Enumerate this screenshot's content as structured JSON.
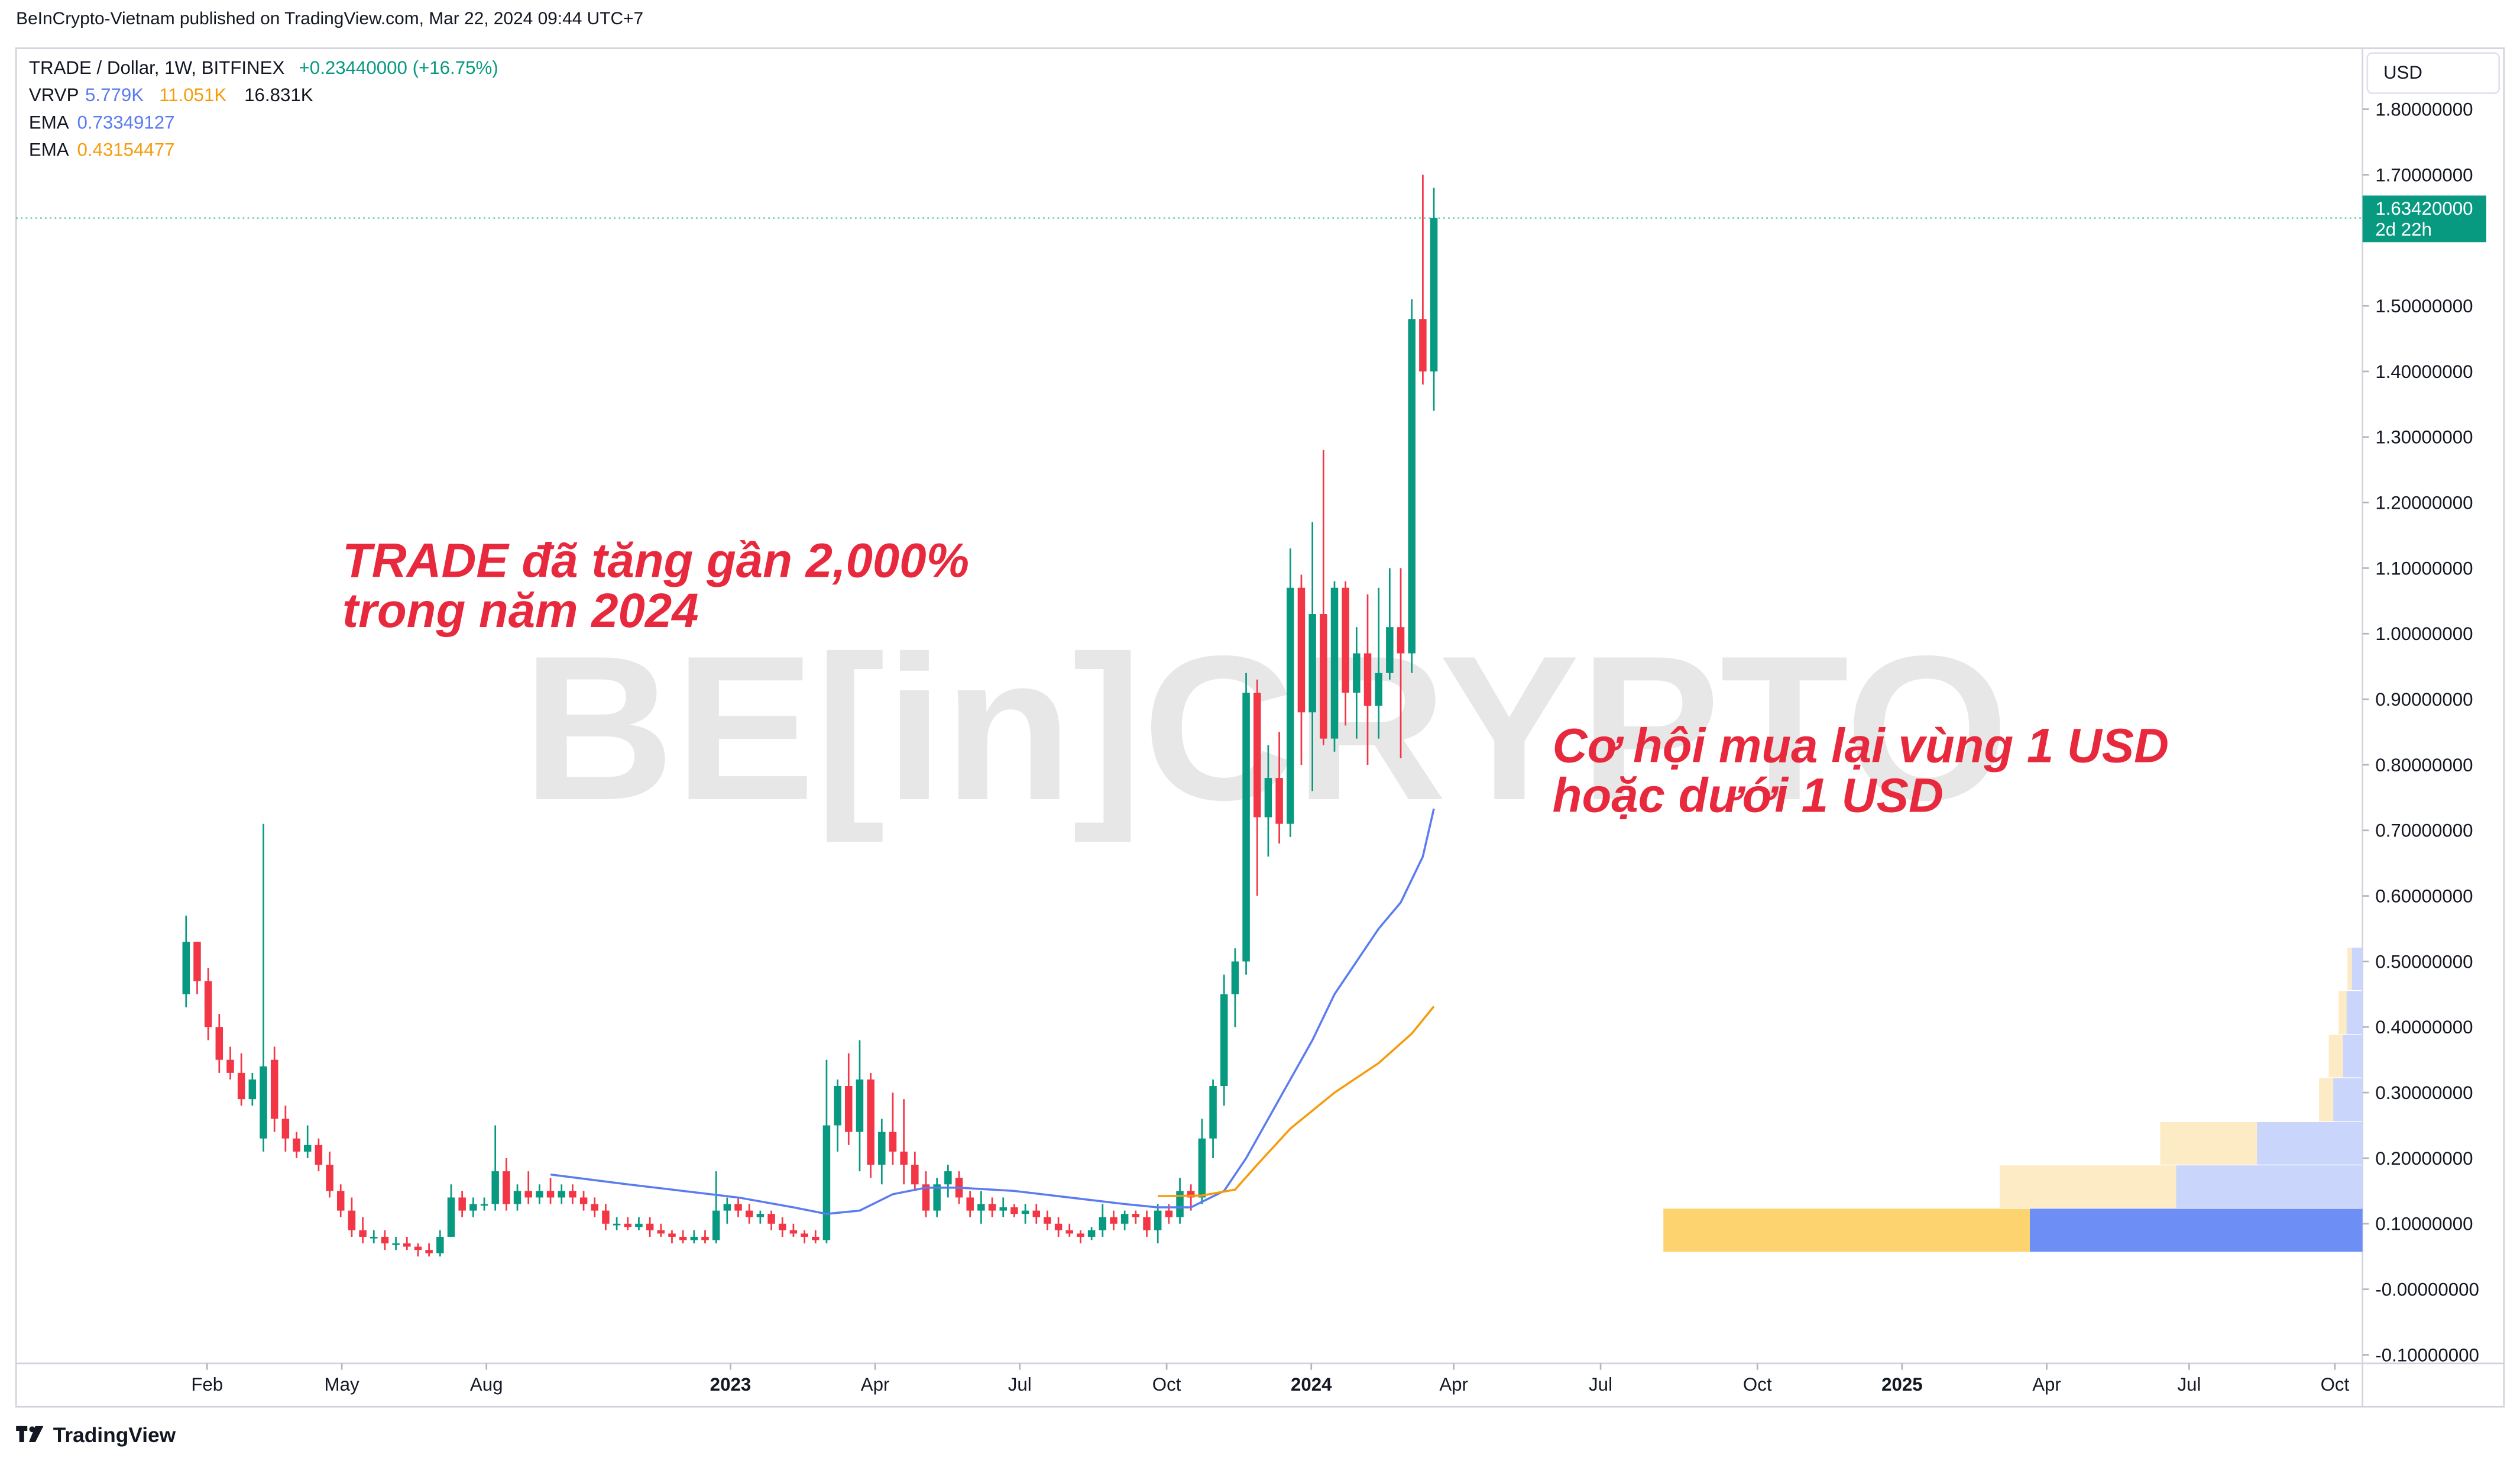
{
  "header": "BeInCrypto-Vietnam published on TradingView.com, Mar 22, 2024 09:44 UTC+7",
  "footer": "TradingView",
  "chart_data": {
    "type": "candlestick",
    "title": "TRADE / Dollar, 1W, BITFINEX",
    "change": "+0.23440000 (+16.75%)",
    "currency": "USD",
    "watermark": "BE[in]CRYPTO",
    "up_color": "#089981",
    "down_color": "#f23645",
    "open": [
      0.45,
      0.53,
      0.47,
      0.4,
      0.35,
      0.33,
      0.29,
      0.23,
      0.35,
      0.26,
      0.23,
      0.21,
      0.22,
      0.19,
      0.15,
      0.12,
      0.09,
      0.08,
      0.08,
      0.07,
      0.07,
      0.065,
      0.06,
      0.055,
      0.08,
      0.14,
      0.12,
      0.13,
      0.13,
      0.18,
      0.13,
      0.15,
      0.14,
      0.15,
      0.14,
      0.15,
      0.14,
      0.13,
      0.12,
      0.1,
      0.1,
      0.095,
      0.1,
      0.09,
      0.085,
      0.08,
      0.075,
      0.08,
      0.075,
      0.12,
      0.13,
      0.12,
      0.11,
      0.115,
      0.1,
      0.09,
      0.085,
      0.08,
      0.075,
      0.25,
      0.31,
      0.24,
      0.32,
      0.19,
      0.24,
      0.21,
      0.19,
      0.16,
      0.12,
      0.16,
      0.17,
      0.14,
      0.12,
      0.13,
      0.12,
      0.125,
      0.115,
      0.12,
      0.11,
      0.1,
      0.09,
      0.085,
      0.08,
      0.09,
      0.11,
      0.1,
      0.115,
      0.11,
      0.09,
      0.12,
      0.11,
      0.15,
      0.14,
      0.23,
      0.31,
      0.45,
      0.5,
      0.91,
      0.72,
      0.78,
      0.71,
      1.07,
      0.88,
      1.03,
      0.84,
      1.07,
      0.91,
      0.97,
      0.89,
      0.94,
      1.01,
      0.97,
      1.48,
      1.4
    ],
    "high": [
      0.57,
      0.53,
      0.49,
      0.42,
      0.37,
      0.36,
      0.33,
      0.71,
      0.37,
      0.28,
      0.24,
      0.25,
      0.23,
      0.21,
      0.16,
      0.14,
      0.11,
      0.09,
      0.09,
      0.08,
      0.08,
      0.07,
      0.07,
      0.09,
      0.16,
      0.15,
      0.14,
      0.14,
      0.25,
      0.2,
      0.16,
      0.18,
      0.16,
      0.17,
      0.16,
      0.16,
      0.15,
      0.14,
      0.13,
      0.11,
      0.11,
      0.11,
      0.11,
      0.1,
      0.09,
      0.09,
      0.09,
      0.09,
      0.18,
      0.14,
      0.14,
      0.13,
      0.12,
      0.12,
      0.11,
      0.1,
      0.09,
      0.09,
      0.35,
      0.32,
      0.36,
      0.38,
      0.33,
      0.26,
      0.3,
      0.29,
      0.21,
      0.18,
      0.17,
      0.19,
      0.18,
      0.15,
      0.15,
      0.14,
      0.14,
      0.13,
      0.13,
      0.13,
      0.12,
      0.11,
      0.1,
      0.09,
      0.095,
      0.13,
      0.12,
      0.12,
      0.12,
      0.12,
      0.13,
      0.13,
      0.17,
      0.16,
      0.26,
      0.32,
      0.48,
      0.52,
      0.94,
      0.93,
      0.83,
      0.85,
      1.13,
      1.09,
      1.17,
      1.28,
      1.08,
      1.08,
      1.01,
      1.06,
      1.07,
      1.1,
      1.1,
      1.51,
      1.7,
      1.68
    ],
    "low": [
      0.43,
      0.45,
      0.38,
      0.33,
      0.32,
      0.28,
      0.28,
      0.21,
      0.24,
      0.21,
      0.2,
      0.2,
      0.18,
      0.14,
      0.11,
      0.08,
      0.07,
      0.07,
      0.06,
      0.06,
      0.06,
      0.05,
      0.05,
      0.05,
      0.08,
      0.11,
      0.11,
      0.12,
      0.12,
      0.12,
      0.12,
      0.13,
      0.13,
      0.13,
      0.13,
      0.13,
      0.12,
      0.11,
      0.09,
      0.09,
      0.09,
      0.09,
      0.08,
      0.08,
      0.07,
      0.07,
      0.07,
      0.07,
      0.07,
      0.1,
      0.11,
      0.1,
      0.1,
      0.09,
      0.08,
      0.08,
      0.07,
      0.07,
      0.07,
      0.21,
      0.22,
      0.18,
      0.17,
      0.16,
      0.19,
      0.16,
      0.15,
      0.11,
      0.11,
      0.14,
      0.13,
      0.11,
      0.1,
      0.11,
      0.11,
      0.11,
      0.1,
      0.1,
      0.09,
      0.08,
      0.08,
      0.07,
      0.075,
      0.08,
      0.09,
      0.09,
      0.1,
      0.08,
      0.07,
      0.1,
      0.1,
      0.12,
      0.13,
      0.2,
      0.28,
      0.4,
      0.48,
      0.6,
      0.66,
      0.68,
      0.69,
      0.8,
      0.76,
      0.83,
      0.82,
      0.86,
      0.84,
      0.8,
      0.84,
      0.93,
      0.81,
      0.94,
      1.38,
      1.34
    ],
    "close": [
      0.53,
      0.47,
      0.4,
      0.35,
      0.33,
      0.29,
      0.32,
      0.34,
      0.26,
      0.23,
      0.21,
      0.22,
      0.19,
      0.15,
      0.12,
      0.09,
      0.08,
      0.08,
      0.07,
      0.07,
      0.065,
      0.06,
      0.055,
      0.08,
      0.14,
      0.12,
      0.13,
      0.13,
      0.18,
      0.13,
      0.15,
      0.14,
      0.15,
      0.14,
      0.15,
      0.14,
      0.13,
      0.12,
      0.1,
      0.1,
      0.095,
      0.1,
      0.09,
      0.085,
      0.08,
      0.075,
      0.08,
      0.075,
      0.12,
      0.13,
      0.12,
      0.11,
      0.115,
      0.1,
      0.09,
      0.085,
      0.08,
      0.075,
      0.25,
      0.31,
      0.24,
      0.32,
      0.19,
      0.24,
      0.21,
      0.19,
      0.16,
      0.12,
      0.16,
      0.18,
      0.14,
      0.12,
      0.13,
      0.12,
      0.125,
      0.115,
      0.12,
      0.11,
      0.1,
      0.09,
      0.085,
      0.08,
      0.09,
      0.11,
      0.1,
      0.115,
      0.11,
      0.09,
      0.12,
      0.11,
      0.15,
      0.14,
      0.23,
      0.31,
      0.45,
      0.5,
      0.91,
      0.72,
      0.78,
      0.71,
      1.07,
      0.88,
      1.03,
      0.84,
      1.07,
      0.91,
      0.97,
      0.89,
      0.94,
      1.01,
      0.97,
      1.48,
      1.4,
      1.634
    ],
    "last_price": {
      "label": "1.63420000",
      "countdown": "2d 22h"
    },
    "overlays": [
      {
        "name": "EMA",
        "value_label": "0.73349127",
        "color": "#5b7cf0",
        "x": [
          33,
          40,
          45,
          50,
          55,
          58,
          61,
          64,
          67,
          70,
          75,
          80,
          85,
          88,
          91,
          94,
          96,
          98,
          100,
          102,
          104,
          106,
          108,
          110,
          112,
          113
        ],
        "values": [
          0.175,
          0.16,
          0.15,
          0.14,
          0.125,
          0.115,
          0.12,
          0.145,
          0.155,
          0.155,
          0.15,
          0.14,
          0.13,
          0.125,
          0.125,
          0.15,
          0.2,
          0.26,
          0.32,
          0.38,
          0.45,
          0.5,
          0.55,
          0.59,
          0.66,
          0.733
        ]
      },
      {
        "name": "EMA",
        "value_label": "0.43154477",
        "color": "#f59c0b",
        "x": [
          88,
          92,
          95,
          97,
          100,
          104,
          108,
          111,
          113
        ],
        "values": [
          0.142,
          0.143,
          0.152,
          0.19,
          0.245,
          0.3,
          0.345,
          0.39,
          0.4315
        ]
      }
    ],
    "volume_profile": {
      "name": "VRVP",
      "totals": [
        "5.779K",
        "11.051K",
        "16.831K"
      ],
      "up_color": "#6d8ff5",
      "down_color": "#fdd36f",
      "up_light": "#c9d5fb",
      "down_light": "#fdebc6",
      "price_low": [
        0.056,
        0.123,
        0.189,
        0.255,
        0.322,
        0.388,
        0.455
      ],
      "price_high": [
        0.123,
        0.189,
        0.255,
        0.322,
        0.388,
        0.455,
        0.521
      ],
      "up": [
        3.75,
        2.1,
        1.19,
        0.33,
        0.22,
        0.18,
        0.12
      ],
      "down": [
        4.13,
        1.99,
        1.09,
        0.16,
        0.16,
        0.09,
        0.05
      ]
    },
    "annotations": [
      {
        "lines": [
          "TRADE đã tăng gần 2,000%",
          "trong năm 2024"
        ],
        "color": "#e8283c"
      },
      {
        "lines": [
          "Cơ hội mua lại vùng 1 USD",
          "hoặc dưới 1 USD"
        ],
        "color": "#e8283c"
      }
    ],
    "ylim": [
      -0.113,
      1.893
    ],
    "yticks": [
      {
        "value": 1.8,
        "label": "1.80000000"
      },
      {
        "value": 1.7,
        "label": "1.70000000"
      },
      {
        "value": 1.5,
        "label": "1.50000000"
      },
      {
        "value": 1.4,
        "label": "1.40000000"
      },
      {
        "value": 1.3,
        "label": "1.30000000"
      },
      {
        "value": 1.2,
        "label": "1.20000000"
      },
      {
        "value": 1.1,
        "label": "1.10000000"
      },
      {
        "value": 1.0,
        "label": "1.00000000"
      },
      {
        "value": 0.9,
        "label": "0.90000000"
      },
      {
        "value": 0.8,
        "label": "0.80000000"
      },
      {
        "value": 0.7,
        "label": "0.70000000"
      },
      {
        "value": 0.6,
        "label": "0.60000000"
      },
      {
        "value": 0.5,
        "label": "0.50000000"
      },
      {
        "value": 0.4,
        "label": "0.40000000"
      },
      {
        "value": 0.3,
        "label": "0.30000000"
      },
      {
        "value": 0.2,
        "label": "0.20000000"
      },
      {
        "value": 0.1,
        "label": "0.10000000"
      },
      {
        "value": 0,
        "label": "-0.00000000"
      },
      {
        "value": -0.1,
        "label": "-0.10000000"
      }
    ],
    "xlim": [
      -15.4,
      197.1
    ],
    "xticks": [
      {
        "value": 1.9,
        "label": "Feb"
      },
      {
        "value": 14.1,
        "label": "May"
      },
      {
        "value": 27.2,
        "label": "Aug"
      },
      {
        "value": 49.3,
        "label": "2023"
      },
      {
        "value": 62.4,
        "label": "Apr"
      },
      {
        "value": 75.5,
        "label": "Jul"
      },
      {
        "value": 88.8,
        "label": "Oct"
      },
      {
        "value": 101.9,
        "label": "2024"
      },
      {
        "value": 114.8,
        "label": "Apr"
      },
      {
        "value": 128.1,
        "label": "Jul"
      },
      {
        "value": 142.3,
        "label": "Oct"
      },
      {
        "value": 155.4,
        "label": "2025"
      },
      {
        "value": 168.5,
        "label": "Apr"
      },
      {
        "value": 181.4,
        "label": "Jul"
      },
      {
        "value": 194.6,
        "label": "Oct"
      }
    ]
  }
}
